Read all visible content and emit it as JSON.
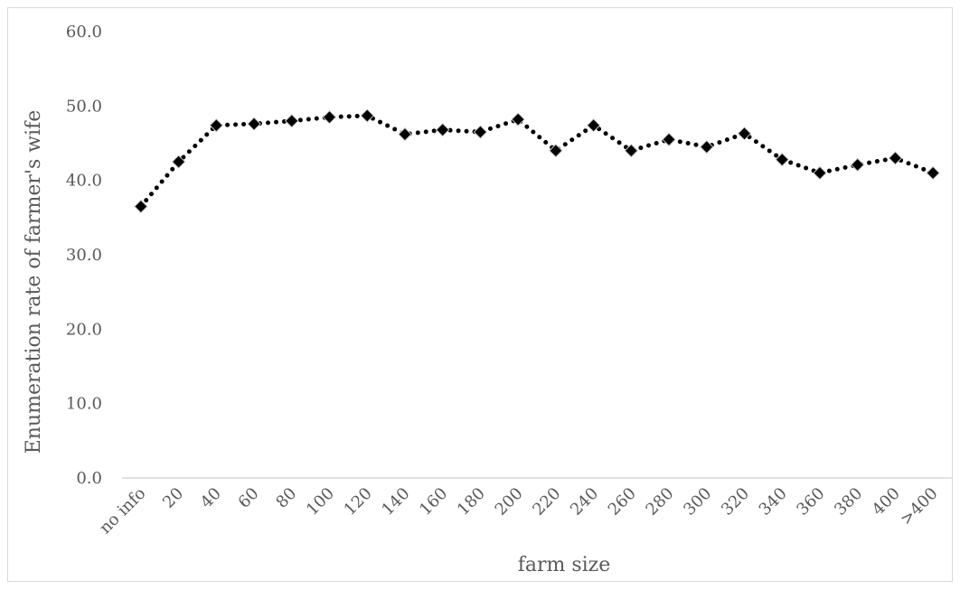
{
  "chart_data": {
    "type": "line",
    "title": "",
    "xlabel": "farm size",
    "ylabel": "Enumeration rate of  farmer's wife",
    "ylim": [
      0,
      60
    ],
    "yticks": [
      "0.0",
      "10.0",
      "20.0",
      "30.0",
      "40.0",
      "50.0",
      "60.0"
    ],
    "categories": [
      "no info",
      "20",
      "40",
      "60",
      "80",
      "100",
      "120",
      "140",
      "160",
      "180",
      "200",
      "220",
      "240",
      "260",
      "280",
      "300",
      "320",
      "340",
      "360",
      "380",
      "400",
      ">400"
    ],
    "series": [
      {
        "values": [
          36.5,
          42.5,
          47.4,
          47.6,
          48.0,
          48.5,
          48.7,
          46.2,
          46.8,
          46.5,
          48.2,
          44.0,
          47.4,
          44.0,
          45.5,
          44.5,
          46.3,
          42.8,
          41.0,
          42.1,
          43.0,
          41.0
        ],
        "line_style": "dotted",
        "marker": "diamond",
        "color": "#000000"
      }
    ],
    "grid": false,
    "legend": "none"
  }
}
